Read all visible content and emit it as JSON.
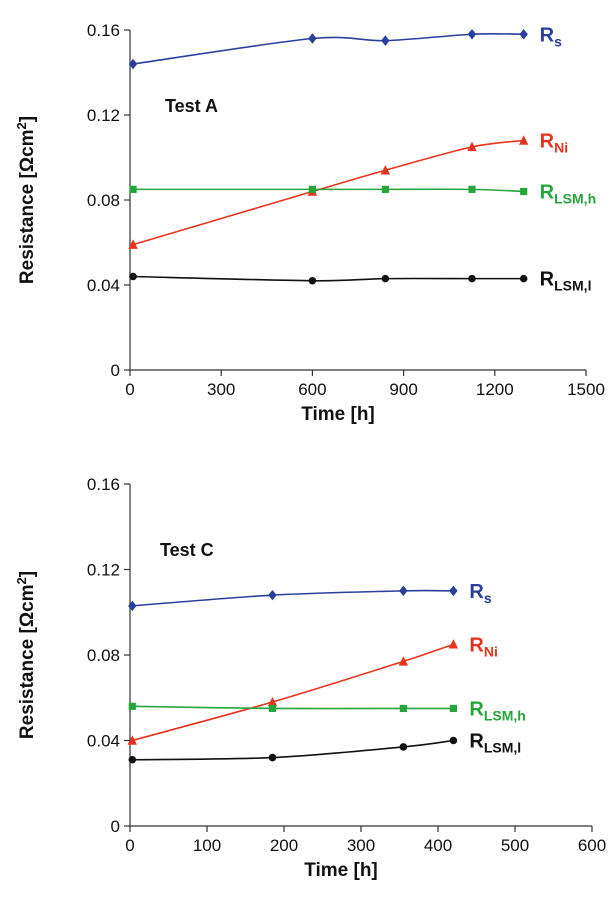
{
  "chart_data": [
    {
      "type": "line",
      "annotation": "Test A",
      "xlabel": "Time [h]",
      "ylabel": "Resistance [Ωcm²]",
      "ylabel_parts": {
        "main": "Resistance [Ωcm",
        "sup": "2",
        "close": "]"
      },
      "xlim": [
        0,
        1500
      ],
      "ylim": [
        0,
        0.16
      ],
      "xticks": [
        "0",
        "300",
        "600",
        "900",
        "1200",
        "1500"
      ],
      "yticks": [
        "0",
        "0.04",
        "0.08",
        "0.12",
        "0.16"
      ],
      "series": [
        {
          "name": "Rs",
          "name_main": "R",
          "name_sub": "s",
          "color": "#2a3f9e",
          "marker": "diamond",
          "x": [
            10,
            600,
            840,
            1125,
            1295
          ],
          "y": [
            0.144,
            0.156,
            0.155,
            0.158,
            0.158
          ]
        },
        {
          "name": "RNi",
          "name_main": "R",
          "name_sub": "Ni",
          "color": "#e8331f",
          "marker": "triangle",
          "x": [
            10,
            600,
            840,
            1125,
            1295
          ],
          "y": [
            0.059,
            0.084,
            0.094,
            0.105,
            0.108
          ]
        },
        {
          "name": "RLSM,h",
          "name_main": "R",
          "name_sub": "LSM,h",
          "color": "#26a63a",
          "marker": "square",
          "x": [
            10,
            600,
            840,
            1125,
            1295
          ],
          "y": [
            0.085,
            0.085,
            0.085,
            0.085,
            0.084
          ]
        },
        {
          "name": "RLSM,l",
          "name_main": "R",
          "name_sub": "LSM,l",
          "color": "#111111",
          "marker": "circle",
          "x": [
            10,
            600,
            840,
            1125,
            1295
          ],
          "y": [
            0.044,
            0.042,
            0.043,
            0.043,
            0.043
          ]
        }
      ]
    },
    {
      "type": "line",
      "annotation": "Test C",
      "xlabel": "Time [h]",
      "ylabel": "Resistance [Ωcm²]",
      "ylabel_parts": {
        "main": "Resistance [Ωcm",
        "sup": "2",
        "close": "]"
      },
      "xlim": [
        0,
        600
      ],
      "ylim": [
        0,
        0.16
      ],
      "xticks": [
        "0",
        "100",
        "200",
        "300",
        "400",
        "500",
        "600"
      ],
      "yticks": [
        "0",
        "0.04",
        "0.08",
        "0.12",
        "0.16"
      ],
      "series": [
        {
          "name": "Rs",
          "name_main": "R",
          "name_sub": "s",
          "color": "#2a3f9e",
          "marker": "diamond",
          "x": [
            3,
            185,
            355,
            420
          ],
          "y": [
            0.103,
            0.108,
            0.11,
            0.11
          ]
        },
        {
          "name": "RNi",
          "name_main": "R",
          "name_sub": "Ni",
          "color": "#e8331f",
          "marker": "triangle",
          "x": [
            3,
            185,
            355,
            420
          ],
          "y": [
            0.04,
            0.058,
            0.077,
            0.085
          ]
        },
        {
          "name": "RLSM,h",
          "name_main": "R",
          "name_sub": "LSM,h",
          "color": "#26a63a",
          "marker": "square",
          "x": [
            3,
            185,
            355,
            420
          ],
          "y": [
            0.056,
            0.055,
            0.055,
            0.055
          ]
        },
        {
          "name": "RLSM,l",
          "name_main": "R",
          "name_sub": "LSM,l",
          "color": "#111111",
          "marker": "circle",
          "x": [
            3,
            185,
            355,
            420
          ],
          "y": [
            0.031,
            0.032,
            0.037,
            0.04
          ]
        }
      ]
    }
  ]
}
